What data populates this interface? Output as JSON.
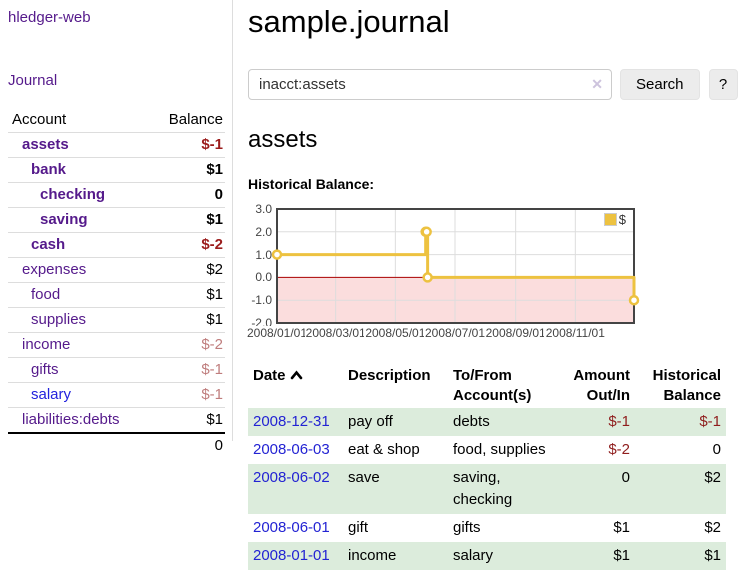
{
  "app": {
    "brand": "hledger-web"
  },
  "sidebar": {
    "nav_journal": "Journal",
    "accounts_table": {
      "account_header": "Account",
      "balance_header": "Balance",
      "rows": [
        {
          "label": "assets",
          "balance": "$-1",
          "depth": 1,
          "bold": true,
          "balance_style": "neg-strong",
          "link": "visited"
        },
        {
          "label": "bank",
          "balance": "$1",
          "depth": 2,
          "bold": true,
          "balance_style": "plain",
          "link": "visited"
        },
        {
          "label": "checking",
          "balance": "0",
          "depth": 3,
          "bold": true,
          "balance_style": "plain",
          "link": "visited"
        },
        {
          "label": "saving",
          "balance": "$1",
          "depth": 3,
          "bold": true,
          "balance_style": "plain",
          "link": "visited"
        },
        {
          "label": "cash",
          "balance": "$-2",
          "depth": 2,
          "bold": true,
          "balance_style": "neg-strong",
          "link": "visited"
        },
        {
          "label": "expenses",
          "balance": "$2",
          "depth": 1,
          "bold": false,
          "balance_style": "plain",
          "link": "visited"
        },
        {
          "label": "food",
          "balance": "$1",
          "depth": 2,
          "bold": false,
          "balance_style": "plain",
          "link": "visited"
        },
        {
          "label": "supplies",
          "balance": "$1",
          "depth": 2,
          "bold": false,
          "balance_style": "plain",
          "link": "visited"
        },
        {
          "label": "income",
          "balance": "$-2",
          "depth": 1,
          "bold": false,
          "balance_style": "neg-dim",
          "link": "visited"
        },
        {
          "label": "gifts",
          "balance": "$-1",
          "depth": 2,
          "bold": false,
          "balance_style": "neg-dim",
          "link": "visited"
        },
        {
          "label": "salary",
          "balance": "$-1",
          "depth": 2,
          "bold": false,
          "balance_style": "neg-dim",
          "link": "unvisited"
        },
        {
          "label": "liabilities:debts",
          "balance": "$1",
          "depth": 1,
          "bold": false,
          "balance_style": "plain",
          "link": "visited"
        }
      ],
      "total": "0"
    }
  },
  "main": {
    "title": "sample.journal",
    "search": {
      "value": "inacct:assets",
      "clear_icon": "✕",
      "button_label": "Search",
      "help_label": "?"
    },
    "account_heading": "assets",
    "chart_label": "Historical Balance:"
  },
  "chart_data": {
    "type": "line",
    "step": true,
    "title": "Historical Balance",
    "series": [
      {
        "name": "$",
        "color": "#edc240",
        "points": [
          [
            "2008-01-01",
            1
          ],
          [
            "2008-06-01",
            2
          ],
          [
            "2008-06-02",
            2
          ],
          [
            "2008-06-03",
            0
          ],
          [
            "2008-12-31",
            -1
          ]
        ]
      }
    ],
    "x_range": [
      "2008-01-01",
      "2008-12-31"
    ],
    "ylim": [
      -2,
      3
    ],
    "y_ticks": [
      3,
      2,
      1,
      0,
      -1,
      -2
    ],
    "x_ticks": [
      "2008/01/01",
      "2008/03/01",
      "2008/05/01",
      "2008/07/01",
      "2008/09/01",
      "2008/11/01"
    ],
    "legend": {
      "label": "$",
      "position": "top-right"
    },
    "grid": true,
    "colors": {
      "line": "#edc240",
      "marker_fill": "#ffffff",
      "negative_fill": "#fbdddd",
      "zero_line": "#aa0000",
      "border": "#444444",
      "gridline": "#dddddd"
    }
  },
  "transactions": {
    "headers": [
      {
        "label": "Date",
        "sorted": "asc"
      },
      {
        "label": "Description"
      },
      {
        "label": "To/From Account(s)"
      },
      {
        "label": "Amount Out/In"
      },
      {
        "label": "Historical Balance"
      }
    ],
    "rows": [
      {
        "date": "2008-12-31",
        "description": "pay off",
        "accounts": "debts",
        "amount": "$-1",
        "balance": "$-1"
      },
      {
        "date": "2008-06-03",
        "description": "eat & shop",
        "accounts": "food, supplies",
        "amount": "$-2",
        "balance": "0"
      },
      {
        "date": "2008-06-02",
        "description": "save",
        "accounts": "saving, checking",
        "amount": "0",
        "balance": "$2"
      },
      {
        "date": "2008-06-01",
        "description": "gift",
        "accounts": "gifts",
        "amount": "$1",
        "balance": "$2"
      },
      {
        "date": "2008-01-01",
        "description": "income",
        "accounts": "salary",
        "amount": "$1",
        "balance": "$1"
      }
    ]
  }
}
